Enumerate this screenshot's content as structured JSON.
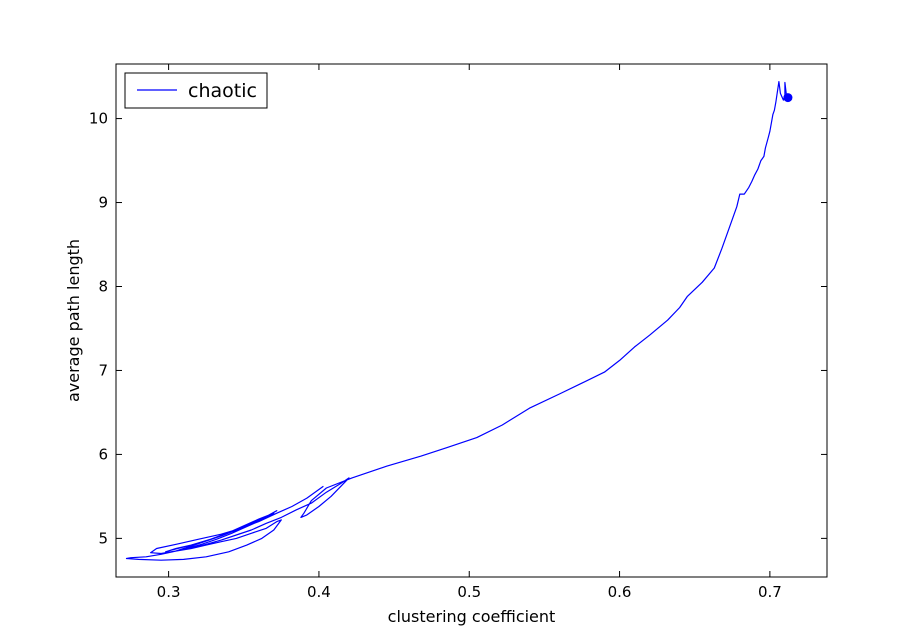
{
  "chart_data": {
    "type": "line",
    "xlabel": "clustering coefficient",
    "ylabel": "average path length",
    "xlim": [
      0.265,
      0.738
    ],
    "ylim": [
      4.54,
      10.65
    ],
    "x_ticks": [
      0.3,
      0.4,
      0.5,
      0.6,
      0.7
    ],
    "y_ticks": [
      5,
      6,
      7,
      8,
      9,
      10
    ],
    "x_tick_labels": [
      "0.3",
      "0.4",
      "0.5",
      "0.6",
      "0.7"
    ],
    "y_tick_labels": [
      "5",
      "6",
      "7",
      "8",
      "9",
      "10"
    ],
    "grid": false,
    "legend": {
      "position": "top-left",
      "entries": [
        "chaotic"
      ]
    },
    "series": [
      {
        "name": "chaotic",
        "color": "#0000ff",
        "x": [
          0.713,
          0.712,
          0.711,
          0.71,
          0.71,
          0.709,
          0.708,
          0.707,
          0.706,
          0.705,
          0.704,
          0.703,
          0.702,
          0.701,
          0.7,
          0.699,
          0.697,
          0.696,
          0.694,
          0.692,
          0.69,
          0.688,
          0.686,
          0.683,
          0.68,
          0.678,
          0.675,
          0.672,
          0.668,
          0.663,
          0.655,
          0.645,
          0.64,
          0.632,
          0.62,
          0.61,
          0.6,
          0.59,
          0.575,
          0.56,
          0.54,
          0.522,
          0.505,
          0.485,
          0.468,
          0.445,
          0.422,
          0.405,
          0.395,
          0.39,
          0.388,
          0.392,
          0.4,
          0.408,
          0.42,
          0.415,
          0.405,
          0.395,
          0.385,
          0.375,
          0.365,
          0.355,
          0.345,
          0.335,
          0.325,
          0.315,
          0.305,
          0.295,
          0.285,
          0.275,
          0.272,
          0.28,
          0.295,
          0.31,
          0.325,
          0.34,
          0.352,
          0.362,
          0.37,
          0.375,
          0.372,
          0.365,
          0.355,
          0.345,
          0.335,
          0.325,
          0.315,
          0.305,
          0.295,
          0.288,
          0.292,
          0.305,
          0.32,
          0.335,
          0.348,
          0.358,
          0.366,
          0.372,
          0.365,
          0.355,
          0.345,
          0.335,
          0.325,
          0.315,
          0.305,
          0.298,
          0.302,
          0.315,
          0.328,
          0.34,
          0.35,
          0.36,
          0.37,
          0.362,
          0.352,
          0.342,
          0.332,
          0.322,
          0.312,
          0.305,
          0.31,
          0.322,
          0.335,
          0.348,
          0.36,
          0.372,
          0.382,
          0.392,
          0.403
        ],
        "y": [
          10.25,
          10.25,
          10.28,
          10.43,
          10.28,
          10.22,
          10.26,
          10.3,
          10.44,
          10.32,
          10.2,
          10.1,
          10.05,
          9.95,
          9.85,
          9.78,
          9.65,
          9.55,
          9.5,
          9.4,
          9.33,
          9.25,
          9.18,
          9.1,
          9.1,
          8.95,
          8.8,
          8.65,
          8.45,
          8.22,
          8.05,
          7.88,
          7.75,
          7.6,
          7.42,
          7.28,
          7.12,
          6.98,
          6.85,
          6.72,
          6.55,
          6.35,
          6.2,
          6.08,
          5.98,
          5.86,
          5.72,
          5.6,
          5.45,
          5.3,
          5.25,
          5.28,
          5.38,
          5.5,
          5.72,
          5.66,
          5.55,
          5.42,
          5.34,
          5.25,
          5.18,
          5.1,
          5.04,
          4.98,
          4.93,
          4.88,
          4.85,
          4.81,
          4.78,
          4.77,
          4.76,
          4.75,
          4.74,
          4.75,
          4.78,
          4.84,
          4.92,
          5.0,
          5.1,
          5.22,
          5.2,
          5.12,
          5.06,
          5.0,
          4.96,
          4.92,
          4.88,
          4.85,
          4.82,
          4.83,
          4.88,
          4.93,
          4.99,
          5.05,
          5.12,
          5.2,
          5.27,
          5.33,
          5.26,
          5.18,
          5.1,
          5.03,
          4.97,
          4.92,
          4.88,
          4.84,
          4.86,
          4.92,
          4.99,
          5.07,
          5.15,
          5.23,
          5.3,
          5.22,
          5.14,
          5.06,
          4.99,
          4.93,
          4.88,
          4.85,
          4.88,
          4.95,
          5.03,
          5.12,
          5.2,
          5.3,
          5.38,
          5.48,
          5.62
        ]
      }
    ],
    "end_marker": {
      "x": 0.712,
      "y": 10.25
    }
  }
}
